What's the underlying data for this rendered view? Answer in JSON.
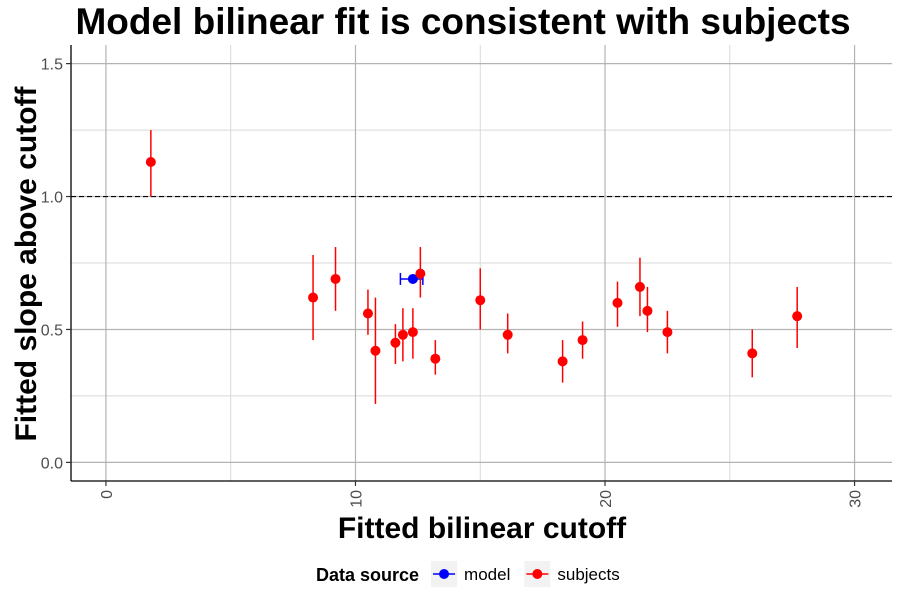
{
  "chart_data": {
    "type": "scatter",
    "title": "Model bilinear fit is consistent with subjects",
    "xlabel": "Fitted bilinear cutoff",
    "ylabel": "Fitted slope above cutoff",
    "xlim": [
      -1.4,
      31.5
    ],
    "ylim": [
      -0.07,
      1.57
    ],
    "x_ticks": [
      0,
      10,
      20,
      30
    ],
    "y_ticks": [
      0.0,
      0.5,
      1.0,
      1.5
    ],
    "x_tick_labels": [
      "0",
      "10",
      "20",
      "30"
    ],
    "y_tick_labels": [
      "0.0",
      "0.5",
      "1.0",
      "1.5"
    ],
    "x_minor_ticks": [
      5,
      15,
      25
    ],
    "y_minor_ticks": [
      0.25,
      0.75,
      1.25
    ],
    "grid": true,
    "reference_line": {
      "y": 1.0,
      "style": "dashed"
    },
    "legend": {
      "title": "Data source",
      "position": "bottom",
      "entries": [
        {
          "label": "model",
          "color": "#0000ff"
        },
        {
          "label": "subjects",
          "color": "#ff0000"
        }
      ]
    },
    "series": [
      {
        "name": "model",
        "color": "#0000ff",
        "points": [
          {
            "x": 12.3,
            "y": 0.69,
            "xmin": 11.8,
            "xmax": 12.7
          }
        ]
      },
      {
        "name": "subjects",
        "color": "#ff0000",
        "points": [
          {
            "x": 1.8,
            "y": 1.13,
            "ymin": 1.0,
            "ymax": 1.25
          },
          {
            "x": 8.3,
            "y": 0.62,
            "ymin": 0.46,
            "ymax": 0.78
          },
          {
            "x": 9.2,
            "y": 0.69,
            "ymin": 0.57,
            "ymax": 0.81
          },
          {
            "x": 10.5,
            "y": 0.56,
            "ymin": 0.48,
            "ymax": 0.65
          },
          {
            "x": 10.8,
            "y": 0.42,
            "ymin": 0.22,
            "ymax": 0.62
          },
          {
            "x": 11.6,
            "y": 0.45,
            "ymin": 0.37,
            "ymax": 0.52
          },
          {
            "x": 11.9,
            "y": 0.48,
            "ymin": 0.38,
            "ymax": 0.58
          },
          {
            "x": 12.3,
            "y": 0.49,
            "ymin": 0.39,
            "ymax": 0.58
          },
          {
            "x": 12.6,
            "y": 0.71,
            "ymin": 0.62,
            "ymax": 0.81
          },
          {
            "x": 13.2,
            "y": 0.39,
            "ymin": 0.33,
            "ymax": 0.46
          },
          {
            "x": 15.0,
            "y": 0.61,
            "ymin": 0.5,
            "ymax": 0.73
          },
          {
            "x": 16.1,
            "y": 0.48,
            "ymin": 0.41,
            "ymax": 0.56
          },
          {
            "x": 18.3,
            "y": 0.38,
            "ymin": 0.3,
            "ymax": 0.46
          },
          {
            "x": 19.1,
            "y": 0.46,
            "ymin": 0.39,
            "ymax": 0.53
          },
          {
            "x": 20.5,
            "y": 0.6,
            "ymin": 0.51,
            "ymax": 0.68
          },
          {
            "x": 21.4,
            "y": 0.66,
            "ymin": 0.55,
            "ymax": 0.77
          },
          {
            "x": 21.7,
            "y": 0.57,
            "ymin": 0.49,
            "ymax": 0.66
          },
          {
            "x": 22.5,
            "y": 0.49,
            "ymin": 0.41,
            "ymax": 0.57
          },
          {
            "x": 25.9,
            "y": 0.41,
            "ymin": 0.32,
            "ymax": 0.5
          },
          {
            "x": 27.7,
            "y": 0.55,
            "ymin": 0.43,
            "ymax": 0.66
          }
        ]
      }
    ]
  }
}
